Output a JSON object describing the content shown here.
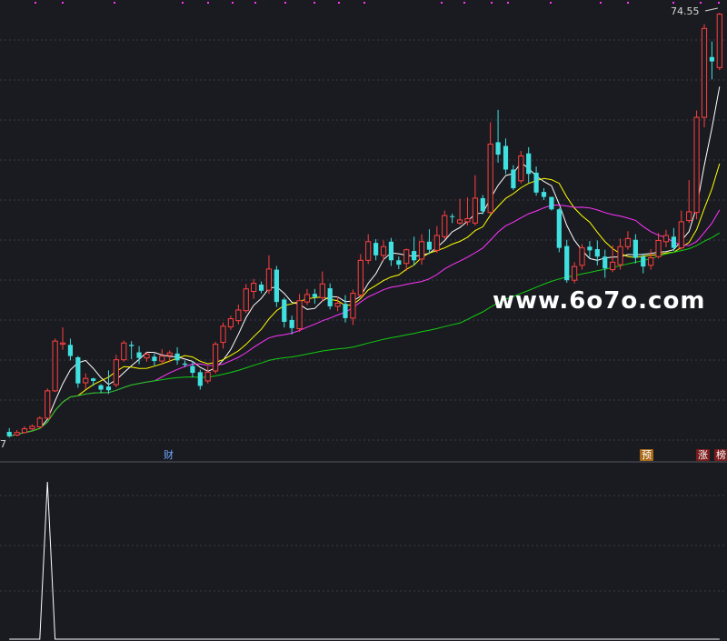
{
  "chart_data": [
    {
      "type": "candlestick",
      "price_labels": {
        "max": "74.55",
        "min": "7"
      },
      "series": [
        {
          "color": "#ffffff",
          "kind": "ma_short"
        },
        {
          "color": "#ffff00",
          "kind": "ma_mid"
        },
        {
          "color": "#ff33ff",
          "kind": "ma_long"
        },
        {
          "color": "#11cc11",
          "kind": "ma_longest"
        }
      ],
      "candles": [
        [
          0,
          7.4,
          6.7,
          8.0,
          6.5
        ],
        [
          1,
          6.9,
          7.3,
          7.7,
          6.7
        ],
        [
          2,
          7.3,
          7.9,
          8.3,
          7.2
        ],
        [
          3,
          7.9,
          8.3,
          8.6,
          7.6
        ],
        [
          4,
          8.2,
          9.6,
          9.9,
          8.0
        ],
        [
          5,
          9.6,
          14.0,
          14.4,
          9.5
        ],
        [
          6,
          14.0,
          22.0,
          22.4,
          13.8
        ],
        [
          7,
          21.5,
          21.7,
          24.2,
          20.6
        ],
        [
          8,
          21.4,
          19.6,
          22.4,
          18.9
        ],
        [
          9,
          19.4,
          15.2,
          19.6,
          14.5
        ],
        [
          10,
          15.3,
          16.0,
          16.8,
          14.3
        ],
        [
          11,
          16.0,
          15.6,
          16.1,
          14.8
        ],
        [
          12,
          14.9,
          14.2,
          15.1,
          13.6
        ],
        [
          13,
          14.7,
          14.1,
          17.3,
          13.5
        ],
        [
          14,
          15.0,
          19.0,
          19.8,
          14.6
        ],
        [
          15,
          19.0,
          21.7,
          22.1,
          18.7
        ],
        [
          16,
          21.4,
          21.2,
          22.0,
          19.1
        ],
        [
          17,
          20.2,
          19.3,
          21.2,
          18.3
        ],
        [
          18,
          19.3,
          19.9,
          20.2,
          18.7
        ],
        [
          19,
          19.5,
          18.8,
          20.0,
          18.1
        ],
        [
          20,
          18.8,
          19.6,
          20.7,
          18.2
        ],
        [
          21,
          19.7,
          20.1,
          20.5,
          18.6
        ],
        [
          22,
          20.0,
          18.9,
          21.0,
          18.2
        ],
        [
          23,
          18.4,
          18.2,
          18.9,
          17.8
        ],
        [
          24,
          18.0,
          16.9,
          18.8,
          16.2
        ],
        [
          25,
          17.0,
          14.8,
          17.4,
          14.2
        ],
        [
          26,
          15.6,
          17.0,
          17.9,
          15.2
        ],
        [
          27,
          17.2,
          21.5,
          21.9,
          16.8
        ],
        [
          28,
          21.8,
          24.4,
          25.0,
          20.8
        ],
        [
          29,
          24.3,
          25.6,
          26.1,
          23.8
        ],
        [
          30,
          25.3,
          27.0,
          27.9,
          24.7
        ],
        [
          31,
          26.9,
          30.4,
          31.2,
          26.5
        ],
        [
          32,
          30.0,
          31.3,
          32.0,
          28.8
        ],
        [
          33,
          31.1,
          30.1,
          31.6,
          29.7
        ],
        [
          34,
          30.2,
          33.6,
          35.8,
          29.6
        ],
        [
          35,
          33.5,
          28.3,
          34.1,
          27.5
        ],
        [
          36,
          28.7,
          25.1,
          29.0,
          24.2
        ],
        [
          37,
          25.4,
          24.1,
          26.1,
          23.1
        ],
        [
          38,
          24.0,
          28.5,
          29.6,
          23.5
        ],
        [
          39,
          28.3,
          29.5,
          30.4,
          27.8
        ],
        [
          40,
          29.6,
          29.1,
          30.4,
          28.0
        ],
        [
          41,
          29.0,
          31.2,
          33.2,
          28.3
        ],
        [
          42,
          30.5,
          27.6,
          31.3,
          27.1
        ],
        [
          43,
          27.6,
          28.1,
          29.2,
          26.8
        ],
        [
          44,
          28.0,
          25.7,
          29.4,
          25.0
        ],
        [
          45,
          25.7,
          29.7,
          30.3,
          24.6
        ],
        [
          46,
          29.4,
          35.0,
          36.0,
          29.0
        ],
        [
          47,
          35.0,
          38.0,
          39.2,
          34.4
        ],
        [
          48,
          37.8,
          35.8,
          38.4,
          35.0
        ],
        [
          49,
          35.8,
          37.2,
          38.2,
          34.9
        ],
        [
          50,
          38.0,
          35.0,
          38.6,
          34.1
        ],
        [
          51,
          35.0,
          34.3,
          35.6,
          33.6
        ],
        [
          52,
          34.5,
          36.7,
          36.9,
          33.3
        ],
        [
          53,
          36.5,
          35.0,
          38.8,
          34.2
        ],
        [
          54,
          35.2,
          38.0,
          39.2,
          34.3
        ],
        [
          55,
          38.0,
          36.7,
          40.0,
          36.0
        ],
        [
          56,
          36.6,
          39.0,
          40.5,
          36.2
        ],
        [
          57,
          38.8,
          42.2,
          43.0,
          38.4
        ],
        [
          58,
          42.1,
          42.0,
          42.5,
          41.0
        ],
        [
          59,
          41.0,
          41.5,
          44.9,
          40.7
        ],
        [
          60,
          41.2,
          41.7,
          45.1,
          40.6
        ],
        [
          61,
          41.0,
          45.0,
          48.7,
          40.6
        ],
        [
          62,
          45.0,
          42.9,
          45.5,
          42.4
        ],
        [
          63,
          42.7,
          53.7,
          57.2,
          42.4
        ],
        [
          64,
          54.0,
          52.0,
          59.2,
          50.7
        ],
        [
          65,
          53.4,
          49.6,
          54.6,
          48.9
        ],
        [
          66,
          49.6,
          46.6,
          50.3,
          46.3
        ],
        [
          67,
          47.8,
          51.8,
          52.6,
          47.4
        ],
        [
          68,
          52.2,
          48.9,
          53.2,
          47.5
        ],
        [
          69,
          49.1,
          45.9,
          50.1,
          45.4
        ],
        [
          70,
          46.0,
          45.2,
          46.6,
          44.7
        ],
        [
          71,
          45.2,
          43.2,
          45.2,
          43.0
        ],
        [
          72,
          43.2,
          37.0,
          43.4,
          36.3
        ],
        [
          73,
          37.3,
          31.8,
          38.3,
          31.4
        ],
        [
          74,
          31.8,
          34.0,
          34.7,
          31.3
        ],
        [
          75,
          34.2,
          37.0,
          37.6,
          33.5
        ],
        [
          76,
          37.2,
          36.6,
          38.1,
          35.3
        ],
        [
          77,
          36.8,
          35.6,
          38.2,
          34.2
        ],
        [
          78,
          35.6,
          33.7,
          36.7,
          32.2
        ],
        [
          79,
          33.5,
          34.7,
          37.4,
          33.1
        ],
        [
          80,
          34.3,
          37.2,
          38.5,
          33.5
        ],
        [
          81,
          37.2,
          38.5,
          39.7,
          36.7
        ],
        [
          82,
          38.3,
          35.4,
          39.2,
          34.5
        ],
        [
          83,
          35.6,
          34.0,
          36.1,
          32.9
        ],
        [
          84,
          34.2,
          35.4,
          36.8,
          33.5
        ],
        [
          85,
          35.6,
          38.2,
          39.4,
          35.3
        ],
        [
          86,
          38.0,
          39.0,
          39.9,
          37.1
        ],
        [
          87,
          38.8,
          37.0,
          40.2,
          36.5
        ],
        [
          88,
          37.0,
          41.2,
          43.0,
          36.7
        ],
        [
          89,
          41.4,
          42.8,
          47.9,
          41.0
        ],
        [
          90,
          42.7,
          58.0,
          59.1,
          41.6
        ],
        [
          91,
          58.0,
          72.3,
          73.0,
          56.4
        ],
        [
          92,
          67.7,
          67.0,
          70.2,
          64.1
        ],
        [
          93,
          66.0,
          74.6,
          74.8,
          65.6
        ]
      ],
      "indicator_panel": {
        "type": "line",
        "values": [
          0,
          0,
          0,
          0,
          0,
          100,
          0,
          0,
          0,
          0,
          0,
          0,
          0,
          0,
          0,
          0,
          0,
          0,
          0,
          0,
          0,
          0,
          0,
          0,
          0,
          0,
          0,
          0,
          0,
          0,
          0,
          0,
          0,
          0,
          0,
          0,
          0,
          0,
          0,
          0,
          0,
          0,
          0,
          0,
          0,
          0,
          0,
          0,
          0,
          0,
          0,
          0,
          0,
          0,
          0,
          0,
          0,
          0,
          0,
          0,
          0,
          0,
          0,
          0,
          0,
          0,
          0,
          0,
          0,
          0,
          0,
          0,
          0,
          0,
          0,
          0,
          0,
          0,
          0,
          0,
          0,
          0,
          0,
          0,
          0,
          0,
          0,
          0,
          0,
          0,
          0,
          0,
          0,
          0
        ]
      },
      "event_tags": [
        {
          "text": "财",
          "at": 21
        },
        {
          "text": "预",
          "at": 83
        },
        {
          "text": "涨",
          "at": 90
        },
        {
          "text": "榜",
          "at": 93
        }
      ],
      "colors": {
        "up": "#ff4040",
        "down": "#40e0e0",
        "grid": "#3a3a48",
        "dots": "#ff33ff"
      }
    }
  ],
  "watermark": "www.6o7o.com"
}
